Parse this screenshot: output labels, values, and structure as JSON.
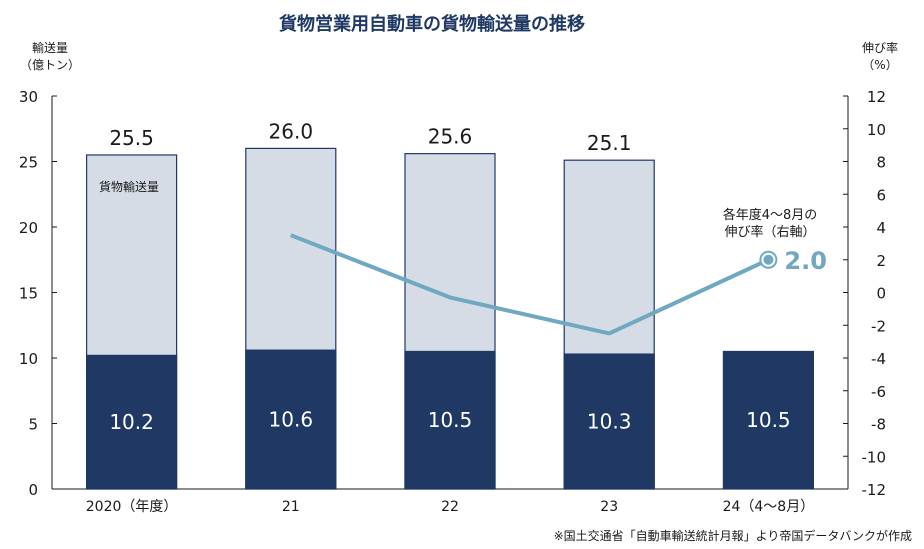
{
  "chart_data": {
    "type": "bar+line",
    "title": "貨物営業用自動車の貨物輸送量の推移",
    "left_axis": {
      "label_line1": "輸送量",
      "label_line2": "（億トン）",
      "ylim": [
        0,
        30
      ],
      "ticks": [
        0,
        5,
        10,
        15,
        20,
        25,
        30
      ]
    },
    "right_axis": {
      "label_line1": "伸び率",
      "label_line2": "（%）",
      "ylim": [
        -12,
        12
      ],
      "ticks": [
        -12,
        -10,
        -8,
        -6,
        -4,
        -2,
        0,
        2,
        4,
        6,
        8,
        10,
        12
      ]
    },
    "categories": [
      "2020（年度）",
      "21",
      "22",
      "23",
      "24（4～8月）"
    ],
    "series": [
      {
        "name": "貨物輸送量",
        "type": "bar",
        "total_values": [
          25.5,
          26.0,
          25.6,
          25.1,
          null
        ],
        "total_labels": [
          "25.5",
          "26.0",
          "25.6",
          "25.1",
          ""
        ],
        "segment_values": [
          10.2,
          10.6,
          10.5,
          10.3,
          10.5
        ],
        "segment_labels": [
          "10.2",
          "10.6",
          "10.5",
          "10.3",
          "10.5"
        ],
        "total_color": "#d5dce6",
        "segment_color": "#1f3864"
      },
      {
        "name": "各年度4～8月の伸び率（右軸）",
        "type": "line",
        "axis": "right",
        "values": [
          null,
          3.5,
          -0.3,
          -2.5,
          2.0
        ],
        "end_label": "2.0",
        "color": "#6fa8c0"
      }
    ],
    "bar_series_note": "貨物輸送量",
    "line_annotation_line1": "各年度4～8月の",
    "line_annotation_line2": "伸び率（右軸）",
    "source": "※国土交通省「自動車輸送統計月報」より帝国データバンクが作成"
  }
}
